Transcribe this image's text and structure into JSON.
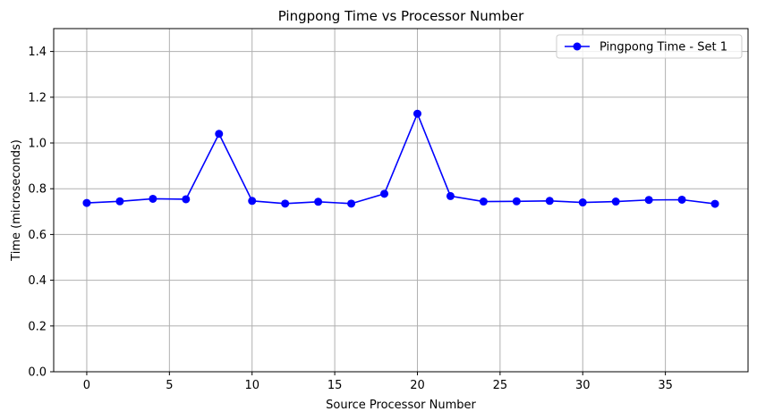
{
  "chart_data": {
    "type": "line",
    "title": "Pingpong Time vs Processor Number",
    "xlabel": "Source Processor Number",
    "ylabel": "Time (microseconds)",
    "xlim": [
      -2,
      40
    ],
    "ylim": [
      0,
      1.5
    ],
    "xticks": [
      0,
      5,
      10,
      15,
      20,
      25,
      30,
      35
    ],
    "yticks": [
      0.0,
      0.2,
      0.4,
      0.6,
      0.8,
      1.0,
      1.2,
      1.4
    ],
    "grid": true,
    "legend_position": "top-right",
    "series": [
      {
        "name": "Pingpong Time - Set 1",
        "color": "#0000ff",
        "marker": "circle",
        "x": [
          0,
          2,
          4,
          6,
          8,
          10,
          12,
          14,
          16,
          18,
          20,
          22,
          24,
          26,
          28,
          30,
          32,
          34,
          36,
          38
        ],
        "y": [
          0.738,
          0.745,
          0.756,
          0.754,
          1.04,
          0.747,
          0.735,
          0.743,
          0.735,
          0.778,
          1.128,
          0.768,
          0.744,
          0.745,
          0.747,
          0.74,
          0.744,
          0.751,
          0.752,
          0.734
        ]
      }
    ]
  }
}
